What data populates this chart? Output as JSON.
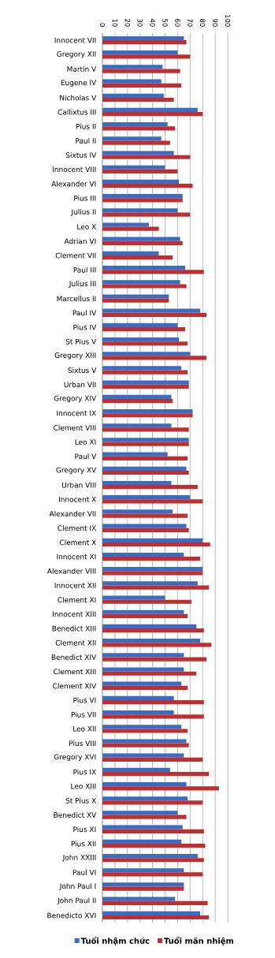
{
  "chart_data": {
    "type": "bar",
    "orientation": "horizontal",
    "categories": [
      "Innocent VII",
      "Gregory XII",
      "Martin V",
      "Eugene IV",
      "Nicholas V",
      "Callixtus III",
      "Pius II",
      "Paul II",
      "Sixtus IV",
      "Innocent VIII",
      "Alexander VI",
      "Pius III",
      "Julius II",
      "Leo X",
      "Adrian VI",
      "Clement VII",
      "Paul III",
      "Julius III",
      "Marcellus II",
      "Paul IV",
      "Pius IV",
      "St Pius V",
      "Gregory XIII",
      "Sixtus V",
      "Urban VII",
      "Gregory XIV",
      "Innocent IX",
      "Clement VIII",
      "Leo XI",
      "Paul V",
      "Gregory XV",
      "Urban VIII",
      "Innocent X",
      "Alexander VII",
      "Clement IX",
      "Clement X",
      "Innocent XI",
      "Alexander VIII",
      "Innocent XII",
      "Clement XI",
      "Innocent XIII",
      "Benedict XIII",
      "Clement XII",
      "Benedict XIV",
      "Clement XIII",
      "Clement XIV",
      "Pius VI",
      "Pius VII",
      "Leo XII",
      "Pius VIII",
      "Gregory XVI",
      "Pius IX",
      "Leo XIII",
      "St Pius X",
      "Benedict XV",
      "Pius XI",
      "Pius XII",
      "John XXIII",
      "Paul VI",
      "John Paul I",
      "John Paul II",
      "Benedicto XVI"
    ],
    "series": [
      {
        "name": "Tuổi nhậm chức",
        "color": "#3a6cc4",
        "values": [
          65,
          60,
          48,
          47,
          49,
          76,
          52,
          47,
          57,
          50,
          61,
          64,
          60,
          37,
          62,
          45,
          66,
          62,
          53,
          78,
          60,
          61,
          70,
          63,
          69,
          55,
          72,
          55,
          69,
          52,
          67,
          55,
          70,
          56,
          67,
          80,
          65,
          80,
          76,
          50,
          65,
          75,
          78,
          65,
          65,
          63,
          57,
          57,
          63,
          67,
          65,
          54,
          67,
          68,
          60,
          64,
          63,
          76,
          65,
          65,
          58,
          78
        ]
      },
      {
        "name": "Tuổi mãn nhiệm",
        "color": "#be2f31",
        "values": [
          67,
          70,
          62,
          63,
          57,
          80,
          58,
          54,
          70,
          60,
          72,
          64,
          70,
          45,
          64,
          56,
          81,
          67,
          53,
          83,
          66,
          68,
          83,
          68,
          69,
          56,
          72,
          69,
          69,
          68,
          69,
          76,
          80,
          68,
          69,
          86,
          78,
          80,
          85,
          71,
          68,
          81,
          87,
          83,
          75,
          68,
          81,
          81,
          68,
          69,
          80,
          85,
          93,
          80,
          67,
          81,
          82,
          81,
          80,
          65,
          84,
          85
        ]
      }
    ],
    "xlim": [
      0,
      100
    ],
    "xticks": [
      0,
      10,
      20,
      30,
      40,
      50,
      60,
      70,
      80,
      90,
      100
    ],
    "grid": "x",
    "legend": "bottom"
  }
}
